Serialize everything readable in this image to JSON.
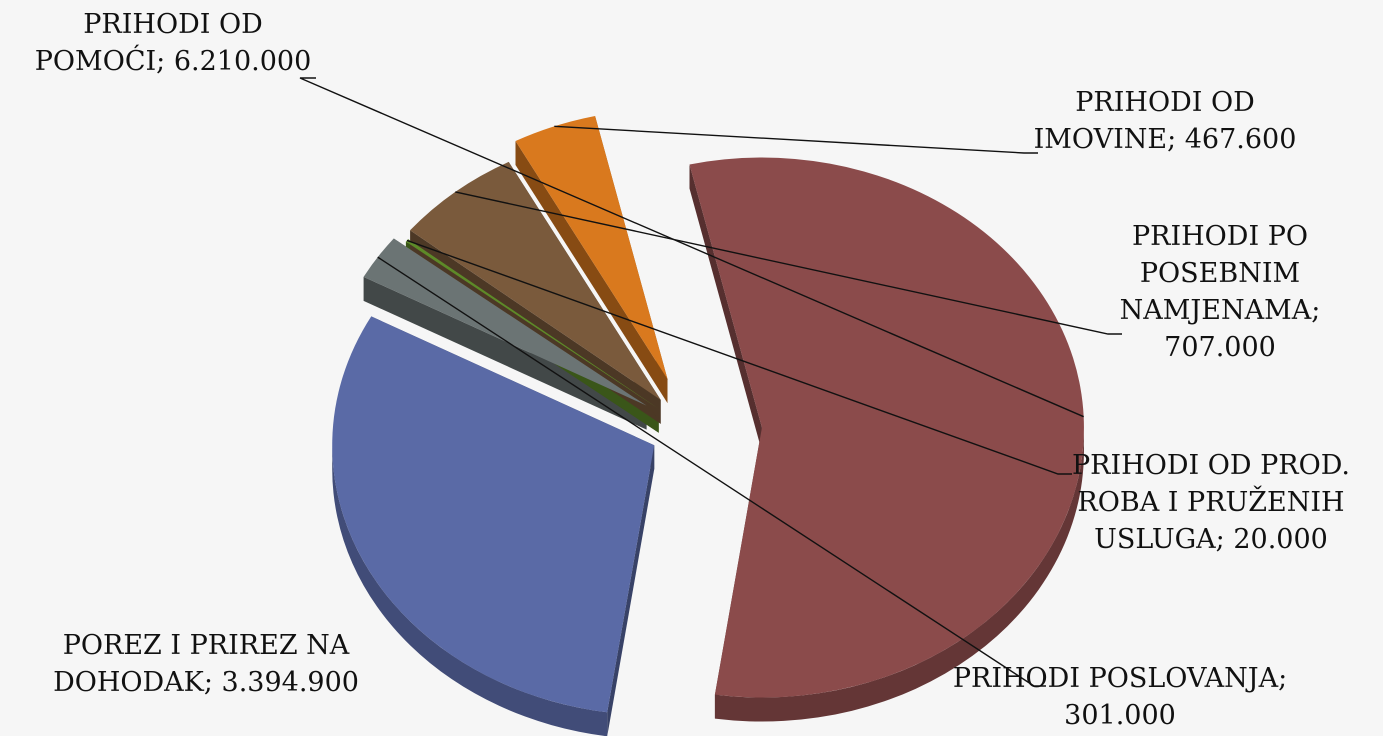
{
  "chart_data": {
    "type": "pie",
    "title": "",
    "three_d": true,
    "exploded": true,
    "legend": "none",
    "slices": [
      {
        "label": "PRIHODI OD POMOĆI; 6.210.000",
        "name": "PRIHODI OD POMOĆI",
        "value": 6210000,
        "color": "#8b4b4b"
      },
      {
        "label": "POREZ I PRIREZ NA DOHODAK; 3.394.900",
        "name": "POREZ I PRIREZ NA DOHODAK",
        "value": 3394900,
        "color": "#5a6aa6"
      },
      {
        "label": "PRIHODI POSLOVANJA; 301.000",
        "name": "PRIHODI POSLOVANJA",
        "value": 301000,
        "color": "#6b7474"
      },
      {
        "label": "PRIHODI OD PROD. ROBA I PRUŽENIH USLUGA; 20.000",
        "name": "PRIHODI OD PROD. ROBA I PRUŽENIH USLUGA",
        "value": 20000,
        "color": "#5d8a28"
      },
      {
        "label": "PRIHODI PO POSEBNIM NAMJENAMA; 707.000",
        "name": "PRIHODI PO POSEBNIM NAMJENAMA",
        "value": 707000,
        "color": "#7a5a3c"
      },
      {
        "label": "PRIHODI OD IMOVINE; 467.600",
        "name": "PRIHODI OD IMOVINE",
        "value": 467600,
        "color": "#d9791e"
      }
    ]
  }
}
